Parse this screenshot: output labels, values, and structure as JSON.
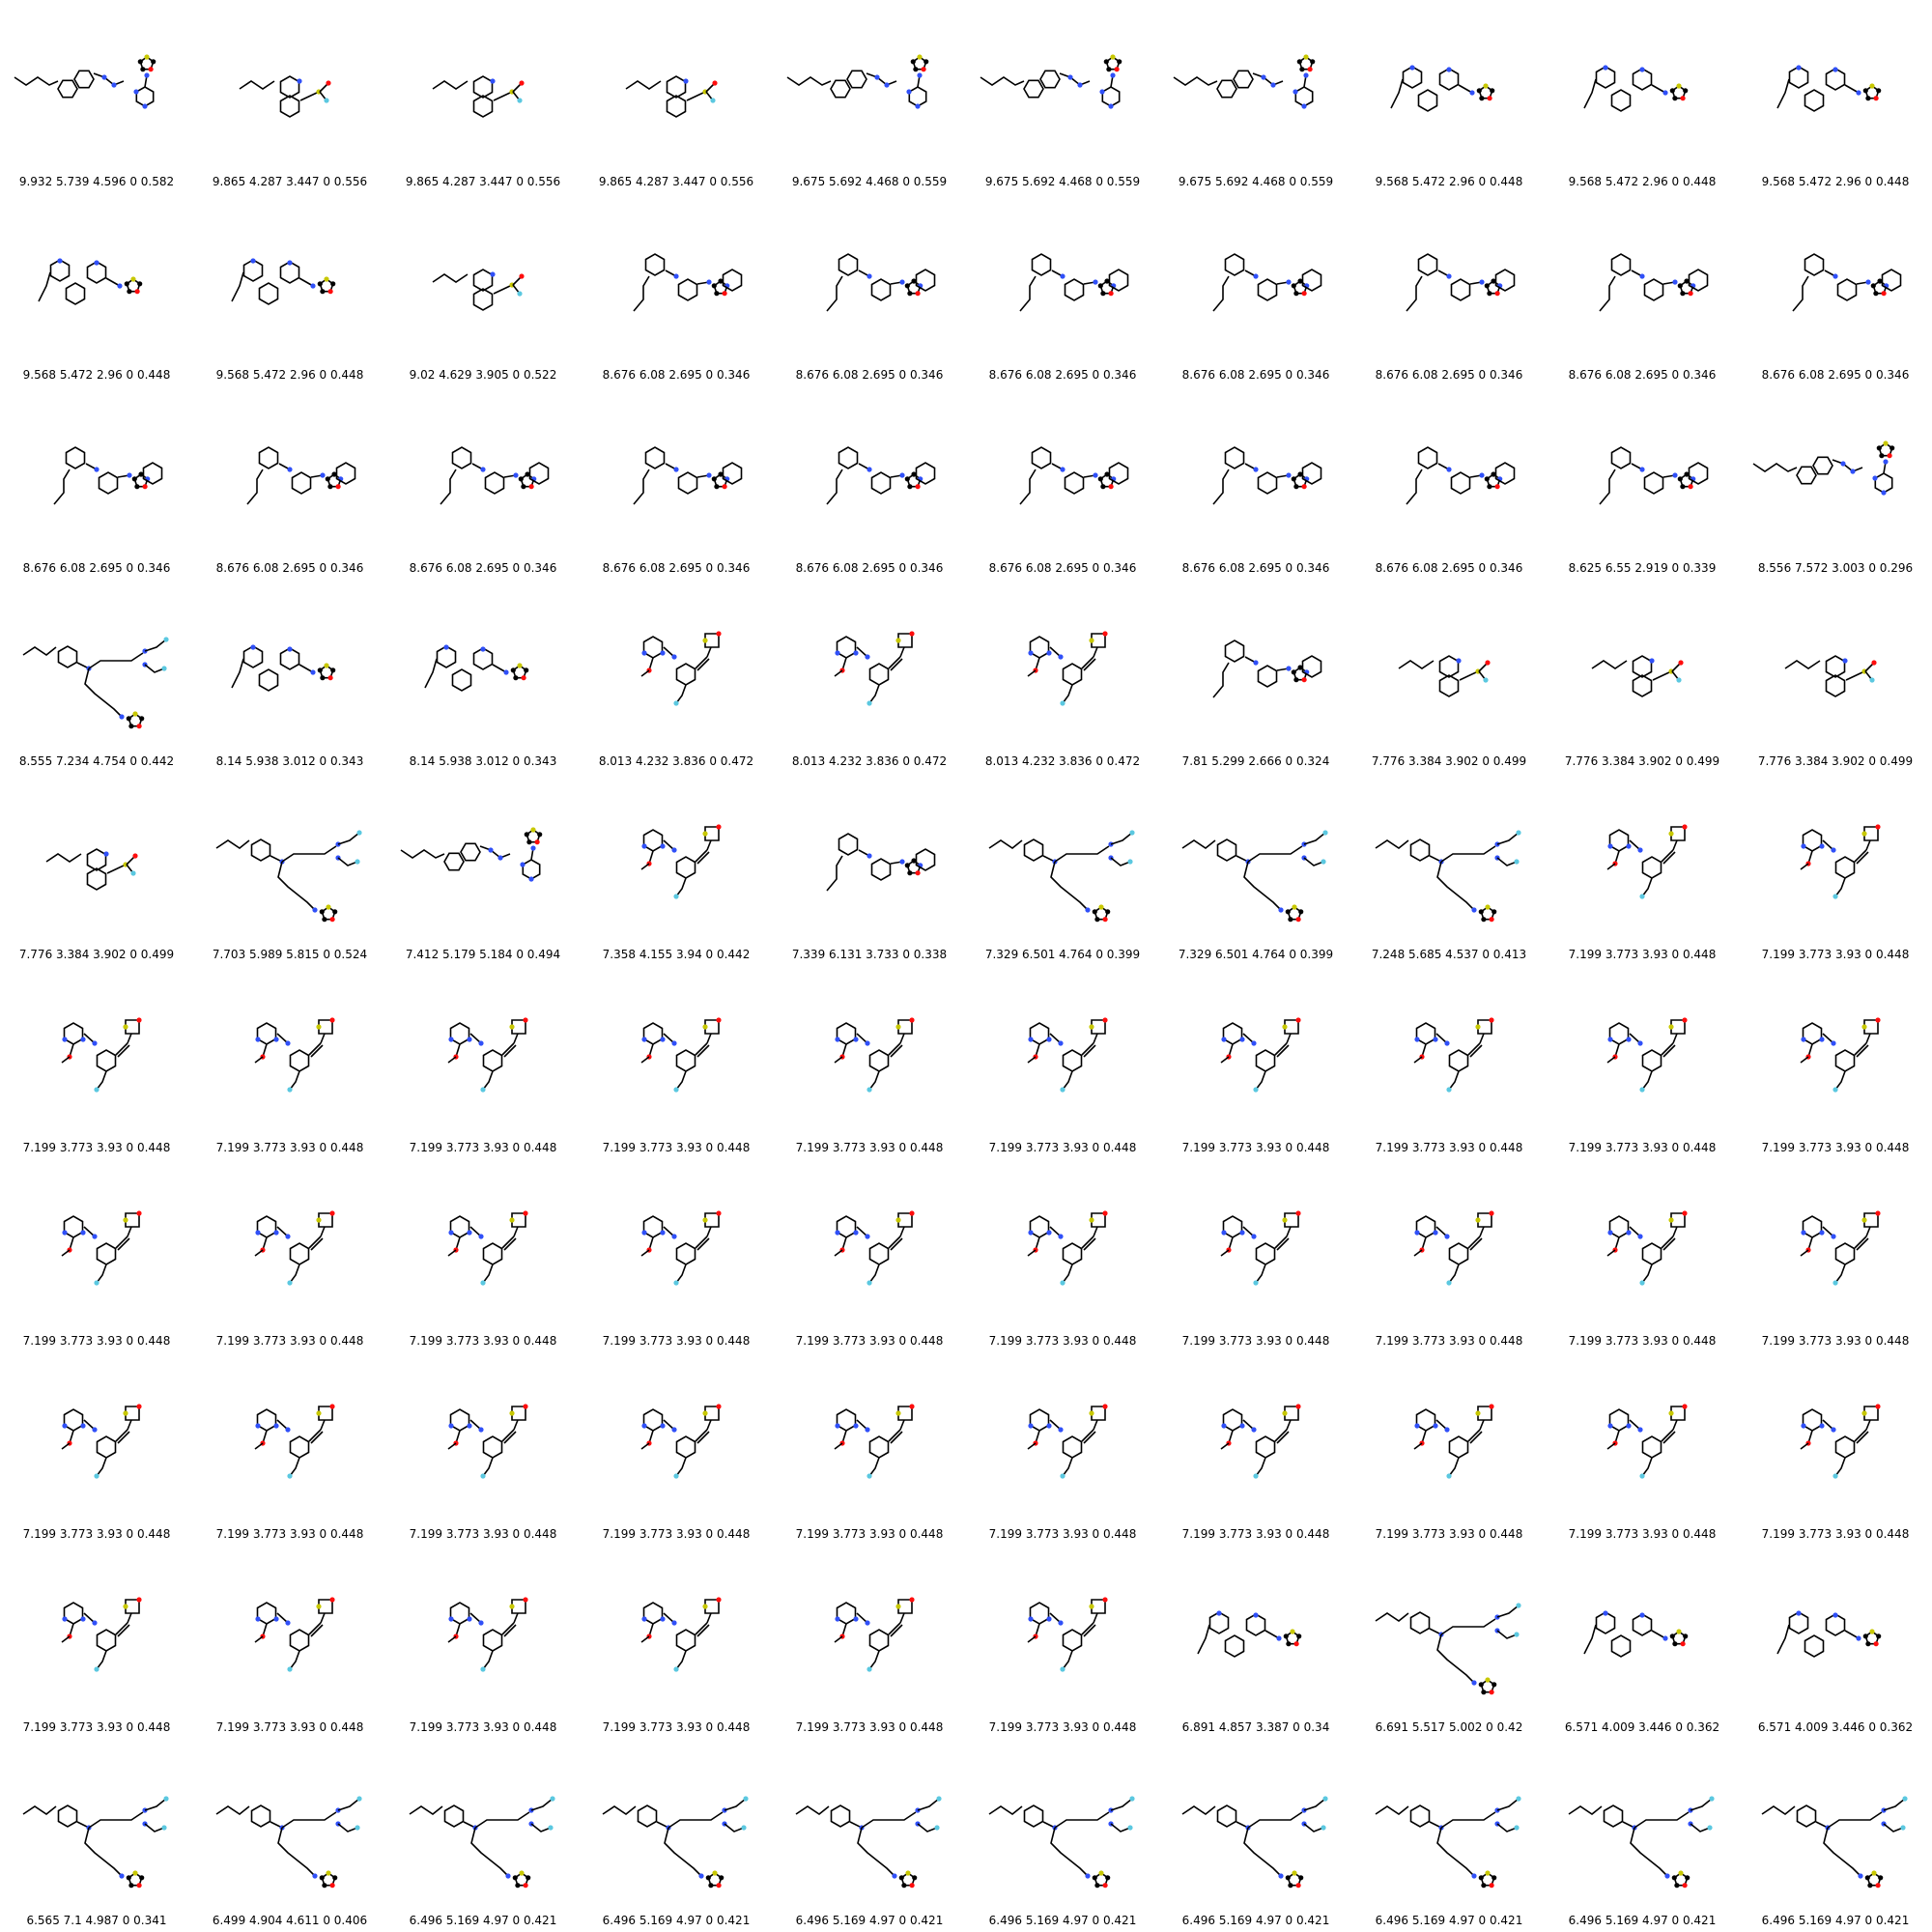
{
  "grid": {
    "columns": 10,
    "rows": 10
  },
  "atom_colors": {
    "carbon_bond": "#000000",
    "nitrogen": "#3050F8",
    "oxygen": "#FF0D0D",
    "sulfur": "#C8C800",
    "fluorine": "#5BC8E0"
  },
  "molecules": [
    {
      "label": "9.932 5.739 4.596 0 0.582",
      "motif": "A"
    },
    {
      "label": "9.865 4.287 3.447 0 0.556",
      "motif": "B"
    },
    {
      "label": "9.865 4.287 3.447 0 0.556",
      "motif": "B"
    },
    {
      "label": "9.865 4.287 3.447 0 0.556",
      "motif": "B"
    },
    {
      "label": "9.675 5.692 4.468 0 0.559",
      "motif": "A"
    },
    {
      "label": "9.675 5.692 4.468 0 0.559",
      "motif": "A"
    },
    {
      "label": "9.675 5.692 4.468 0 0.559",
      "motif": "A"
    },
    {
      "label": "9.568 5.472 2.96 0 0.448",
      "motif": "C"
    },
    {
      "label": "9.568 5.472 2.96 0 0.448",
      "motif": "C"
    },
    {
      "label": "9.568 5.472 2.96 0 0.448",
      "motif": "C"
    },
    {
      "label": "9.568 5.472 2.96 0 0.448",
      "motif": "C"
    },
    {
      "label": "9.568 5.472 2.96 0 0.448",
      "motif": "C"
    },
    {
      "label": "9.02 4.629 3.905 0 0.522",
      "motif": "B"
    },
    {
      "label": "8.676 6.08 2.695 0 0.346",
      "motif": "D"
    },
    {
      "label": "8.676 6.08 2.695 0 0.346",
      "motif": "D"
    },
    {
      "label": "8.676 6.08 2.695 0 0.346",
      "motif": "D"
    },
    {
      "label": "8.676 6.08 2.695 0 0.346",
      "motif": "D"
    },
    {
      "label": "8.676 6.08 2.695 0 0.346",
      "motif": "D"
    },
    {
      "label": "8.676 6.08 2.695 0 0.346",
      "motif": "D"
    },
    {
      "label": "8.676 6.08 2.695 0 0.346",
      "motif": "D"
    },
    {
      "label": "8.676 6.08 2.695 0 0.346",
      "motif": "D"
    },
    {
      "label": "8.676 6.08 2.695 0 0.346",
      "motif": "D"
    },
    {
      "label": "8.676 6.08 2.695 0 0.346",
      "motif": "D"
    },
    {
      "label": "8.676 6.08 2.695 0 0.346",
      "motif": "D"
    },
    {
      "label": "8.676 6.08 2.695 0 0.346",
      "motif": "D"
    },
    {
      "label": "8.676 6.08 2.695 0 0.346",
      "motif": "D"
    },
    {
      "label": "8.676 6.08 2.695 0 0.346",
      "motif": "D"
    },
    {
      "label": "8.676 6.08 2.695 0 0.346",
      "motif": "D"
    },
    {
      "label": "8.625 6.55 2.919 0 0.339",
      "motif": "D"
    },
    {
      "label": "8.556 7.572 3.003 0 0.296",
      "motif": "A"
    },
    {
      "label": "8.555 7.234 4.754 0 0.442",
      "motif": "F"
    },
    {
      "label": "8.14 5.938 3.012 0 0.343",
      "motif": "C"
    },
    {
      "label": "8.14 5.938 3.012 0 0.343",
      "motif": "C"
    },
    {
      "label": "8.013 4.232 3.836 0 0.472",
      "motif": "E"
    },
    {
      "label": "8.013 4.232 3.836 0 0.472",
      "motif": "E"
    },
    {
      "label": "8.013 4.232 3.836 0 0.472",
      "motif": "E"
    },
    {
      "label": "7.81 5.299 2.666 0 0.324",
      "motif": "D"
    },
    {
      "label": "7.776 3.384 3.902 0 0.499",
      "motif": "B"
    },
    {
      "label": "7.776 3.384 3.902 0 0.499",
      "motif": "B"
    },
    {
      "label": "7.776 3.384 3.902 0 0.499",
      "motif": "B"
    },
    {
      "label": "7.776 3.384 3.902 0 0.499",
      "motif": "B"
    },
    {
      "label": "7.703 5.989 5.815 0 0.524",
      "motif": "F"
    },
    {
      "label": "7.412 5.179 5.184 0 0.494",
      "motif": "A"
    },
    {
      "label": "7.358 4.155 3.94 0 0.442",
      "motif": "E"
    },
    {
      "label": "7.339 6.131 3.733 0 0.338",
      "motif": "D"
    },
    {
      "label": "7.329 6.501 4.764 0 0.399",
      "motif": "F"
    },
    {
      "label": "7.329 6.501 4.764 0 0.399",
      "motif": "F"
    },
    {
      "label": "7.248 5.685 4.537 0 0.413",
      "motif": "F"
    },
    {
      "label": "7.199 3.773 3.93 0 0.448",
      "motif": "E"
    },
    {
      "label": "7.199 3.773 3.93 0 0.448",
      "motif": "E"
    },
    {
      "label": "7.199 3.773 3.93 0 0.448",
      "motif": "E"
    },
    {
      "label": "7.199 3.773 3.93 0 0.448",
      "motif": "E"
    },
    {
      "label": "7.199 3.773 3.93 0 0.448",
      "motif": "E"
    },
    {
      "label": "7.199 3.773 3.93 0 0.448",
      "motif": "E"
    },
    {
      "label": "7.199 3.773 3.93 0 0.448",
      "motif": "E"
    },
    {
      "label": "7.199 3.773 3.93 0 0.448",
      "motif": "E"
    },
    {
      "label": "7.199 3.773 3.93 0 0.448",
      "motif": "E"
    },
    {
      "label": "7.199 3.773 3.93 0 0.448",
      "motif": "E"
    },
    {
      "label": "7.199 3.773 3.93 0 0.448",
      "motif": "E"
    },
    {
      "label": "7.199 3.773 3.93 0 0.448",
      "motif": "E"
    },
    {
      "label": "7.199 3.773 3.93 0 0.448",
      "motif": "E"
    },
    {
      "label": "7.199 3.773 3.93 0 0.448",
      "motif": "E"
    },
    {
      "label": "7.199 3.773 3.93 0 0.448",
      "motif": "E"
    },
    {
      "label": "7.199 3.773 3.93 0 0.448",
      "motif": "E"
    },
    {
      "label": "7.199 3.773 3.93 0 0.448",
      "motif": "E"
    },
    {
      "label": "7.199 3.773 3.93 0 0.448",
      "motif": "E"
    },
    {
      "label": "7.199 3.773 3.93 0 0.448",
      "motif": "E"
    },
    {
      "label": "7.199 3.773 3.93 0 0.448",
      "motif": "E"
    },
    {
      "label": "7.199 3.773 3.93 0 0.448",
      "motif": "E"
    },
    {
      "label": "7.199 3.773 3.93 0 0.448",
      "motif": "E"
    },
    {
      "label": "7.199 3.773 3.93 0 0.448",
      "motif": "E"
    },
    {
      "label": "7.199 3.773 3.93 0 0.448",
      "motif": "E"
    },
    {
      "label": "7.199 3.773 3.93 0 0.448",
      "motif": "E"
    },
    {
      "label": "7.199 3.773 3.93 0 0.448",
      "motif": "E"
    },
    {
      "label": "7.199 3.773 3.93 0 0.448",
      "motif": "E"
    },
    {
      "label": "7.199 3.773 3.93 0 0.448",
      "motif": "E"
    },
    {
      "label": "7.199 3.773 3.93 0 0.448",
      "motif": "E"
    },
    {
      "label": "7.199 3.773 3.93 0 0.448",
      "motif": "E"
    },
    {
      "label": "7.199 3.773 3.93 0 0.448",
      "motif": "E"
    },
    {
      "label": "7.199 3.773 3.93 0 0.448",
      "motif": "E"
    },
    {
      "label": "7.199 3.773 3.93 0 0.448",
      "motif": "E"
    },
    {
      "label": "7.199 3.773 3.93 0 0.448",
      "motif": "E"
    },
    {
      "label": "7.199 3.773 3.93 0 0.448",
      "motif": "E"
    },
    {
      "label": "7.199 3.773 3.93 0 0.448",
      "motif": "E"
    },
    {
      "label": "7.199 3.773 3.93 0 0.448",
      "motif": "E"
    },
    {
      "label": "7.199 3.773 3.93 0 0.448",
      "motif": "E"
    },
    {
      "label": "6.891 4.857 3.387 0 0.34",
      "motif": "C"
    },
    {
      "label": "6.691 5.517 5.002 0 0.42",
      "motif": "F"
    },
    {
      "label": "6.571 4.009 3.446 0 0.362",
      "motif": "C"
    },
    {
      "label": "6.571 4.009 3.446 0 0.362",
      "motif": "C"
    },
    {
      "label": "6.565 7.1 4.987 0 0.341",
      "motif": "F"
    },
    {
      "label": "6.499 4.904 4.611 0 0.406",
      "motif": "F"
    },
    {
      "label": "6.496 5.169 4.97 0 0.421",
      "motif": "F"
    },
    {
      "label": "6.496 5.169 4.97 0 0.421",
      "motif": "F"
    },
    {
      "label": "6.496 5.169 4.97 0 0.421",
      "motif": "F"
    },
    {
      "label": "6.496 5.169 4.97 0 0.421",
      "motif": "F"
    },
    {
      "label": "6.496 5.169 4.97 0 0.421",
      "motif": "F"
    },
    {
      "label": "6.496 5.169 4.97 0 0.421",
      "motif": "F"
    },
    {
      "label": "6.496 5.169 4.97 0 0.421",
      "motif": "F"
    },
    {
      "label": "6.496 5.169 4.97 0 0.421",
      "motif": "F"
    }
  ]
}
